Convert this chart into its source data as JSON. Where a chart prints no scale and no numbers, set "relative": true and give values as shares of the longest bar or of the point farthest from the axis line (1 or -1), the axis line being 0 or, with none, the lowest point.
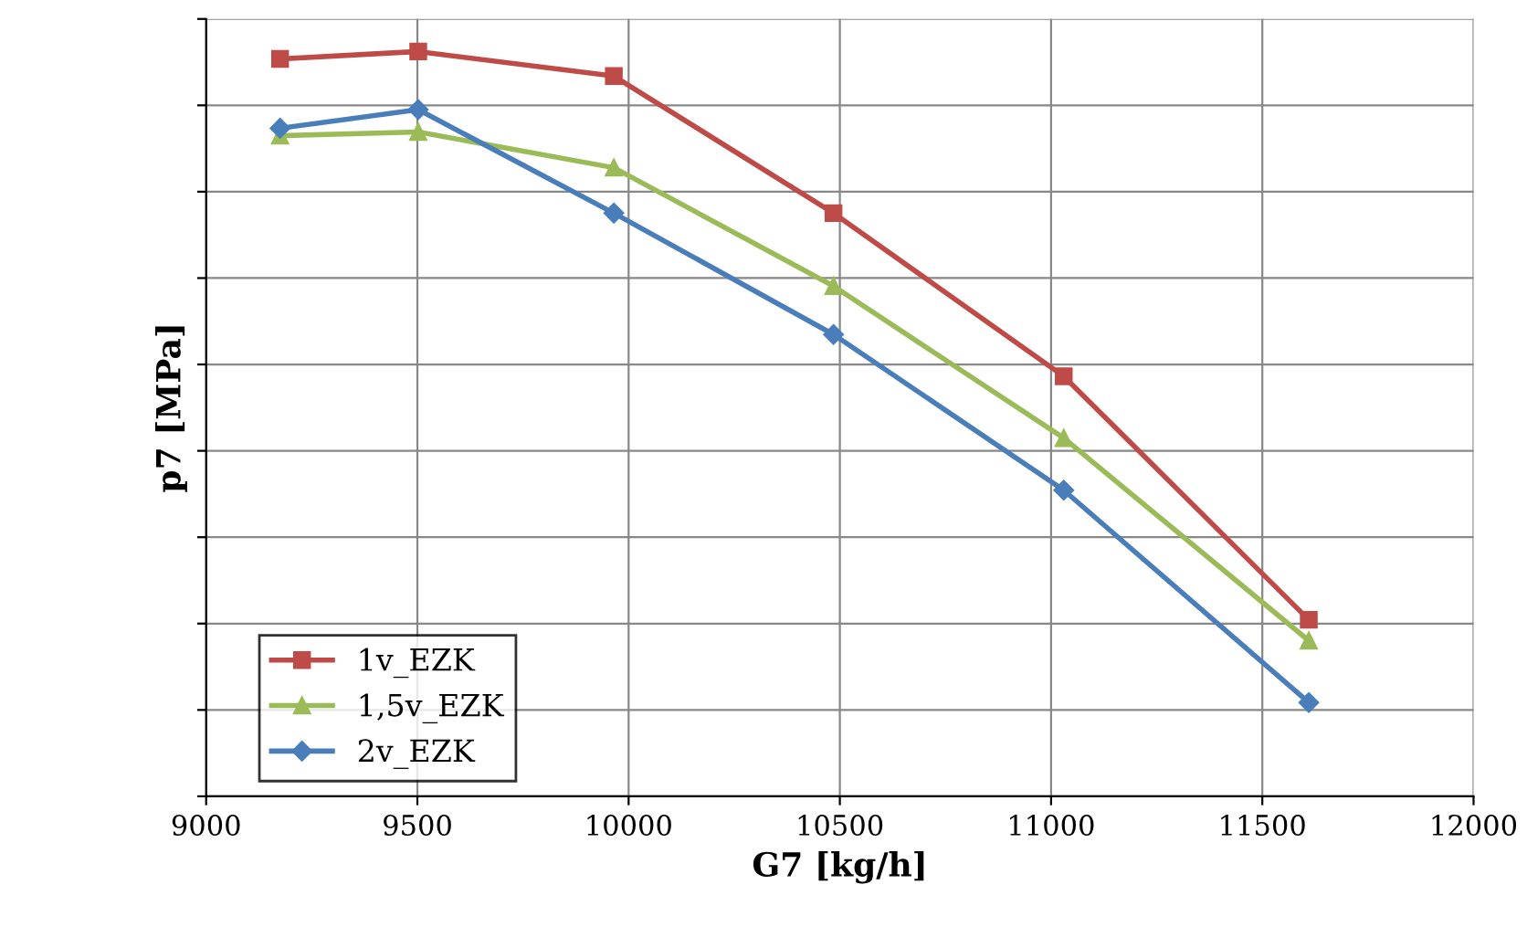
{
  "chart_data": {
    "type": "line",
    "xlabel": "G7 [kg/h]",
    "ylabel": "p7 [MPa]",
    "relative": true,
    "xlim": [
      9000,
      12000
    ],
    "xticks": [
      9000,
      9500,
      10000,
      10500,
      11000,
      11500,
      12000
    ],
    "grid": true,
    "legend": "bottom left",
    "line_style": "solid",
    "series": [
      {
        "name": "1v_EZK",
        "color": "#be4b48",
        "marker": "square",
        "x": [
          9175,
          9502,
          9965,
          10485,
          11030,
          11610
        ],
        "values": [
          0.99,
          1.0,
          0.967,
          0.783,
          0.564,
          0.237
        ]
      },
      {
        "name": "1,5v_EZK",
        "color": "#9bbb59",
        "marker": "triangle",
        "x": [
          9175,
          9502,
          9965,
          10485,
          11030,
          11610
        ],
        "values": [
          0.887,
          0.892,
          0.844,
          0.685,
          0.481,
          0.209
        ]
      },
      {
        "name": "2v_EZK",
        "color": "#4a7ebb",
        "marker": "diamond",
        "x": [
          9175,
          9502,
          9965,
          10485,
          11030,
          11610
        ],
        "values": [
          0.897,
          0.922,
          0.783,
          0.62,
          0.411,
          0.126
        ]
      }
    ]
  }
}
